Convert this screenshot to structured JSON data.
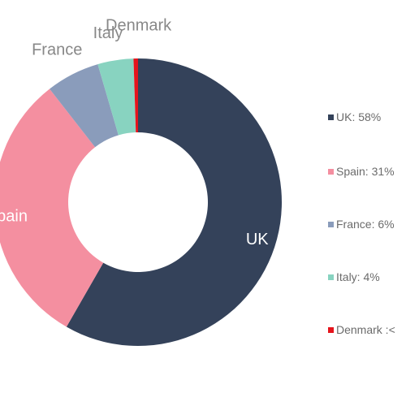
{
  "chart_data": {
    "type": "pie",
    "donut": true,
    "title": "",
    "categories": [
      "UK",
      "Spain",
      "France",
      "Italy",
      "Denmark"
    ],
    "values": [
      58,
      31,
      6,
      4,
      0.5
    ],
    "colors": [
      "#34425a",
      "#f48fa0",
      "#8a9cbb",
      "#88d3c0",
      "#e5141c"
    ],
    "label_colors": [
      "#ffffff",
      "#ffffff",
      "#888888",
      "#888888",
      "#888888"
    ],
    "legend_position": "right",
    "legend": [
      {
        "text": "UK: 58%"
      },
      {
        "text": "Spain: 31%"
      },
      {
        "text": "France: 6%"
      },
      {
        "text": "Italy: 4%"
      },
      {
        "text": "Denmark :<"
      }
    ]
  }
}
